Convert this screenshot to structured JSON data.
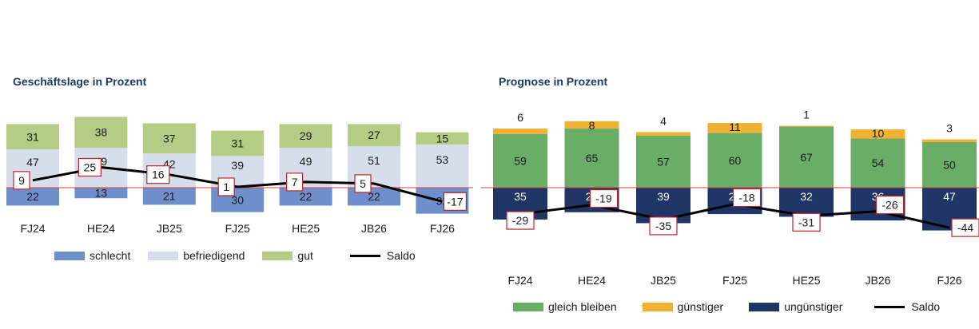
{
  "chart_data": [
    {
      "type": "bar",
      "title": "Geschäftslage in Prozent",
      "categories": [
        "FJ24",
        "HE24",
        "JB25",
        "FJ25",
        "HE25",
        "JB26",
        "FJ26"
      ],
      "series": [
        {
          "name": "schlecht",
          "values": [
            22,
            13,
            21,
            30,
            22,
            22,
            32
          ],
          "color": "#6f8fcb"
        },
        {
          "name": "befriedigend",
          "values": [
            47,
            49,
            42,
            39,
            49,
            51,
            53
          ],
          "color": "#d6deeb"
        },
        {
          "name": "gut",
          "values": [
            31,
            38,
            37,
            31,
            29,
            27,
            15
          ],
          "color": "#b4cc84"
        },
        {
          "name": "Saldo",
          "values": [
            9,
            25,
            16,
            1,
            7,
            5,
            -17
          ],
          "color": "#000000"
        }
      ],
      "legend": "bottom"
    },
    {
      "type": "bar",
      "title": "Prognose in Prozent",
      "categories": [
        "FJ24",
        "HE24",
        "JB25",
        "FJ25",
        "HE25",
        "JB26",
        "FJ26"
      ],
      "series": [
        {
          "name": "gleich bleiben",
          "values": [
            59,
            65,
            57,
            60,
            67,
            54,
            50
          ],
          "color": "#6aad66"
        },
        {
          "name": "günstiger",
          "values": [
            6,
            8,
            4,
            11,
            1,
            10,
            3
          ],
          "color": "#f1b233"
        },
        {
          "name": "ungünstiger",
          "values": [
            35,
            27,
            39,
            29,
            32,
            36,
            47
          ],
          "color": "#1f3566"
        },
        {
          "name": "Saldo",
          "values": [
            -29,
            -19,
            -35,
            -18,
            -31,
            -26,
            -44
          ],
          "color": "#000000"
        }
      ],
      "legend": "bottom"
    }
  ]
}
